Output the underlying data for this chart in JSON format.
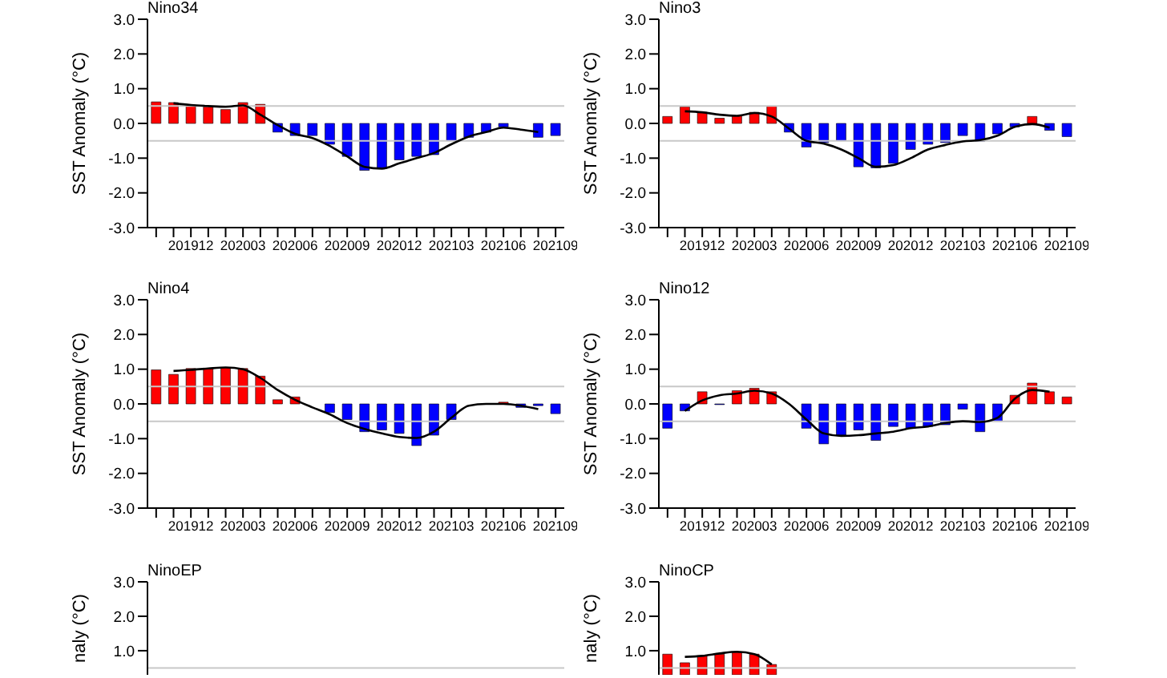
{
  "chart_data": [
    {
      "type": "bar",
      "title": "Nino34",
      "ylabel": "SST Anomaly (°C)",
      "categories": [
        null,
        null,
        "201912",
        null,
        null,
        "202003",
        null,
        null,
        "202006",
        null,
        null,
        "202009",
        null,
        null,
        "202012",
        null,
        null,
        "202103",
        null,
        null,
        "202106",
        null,
        null,
        "202109"
      ],
      "ylim": [
        -3,
        3
      ],
      "yticks": [
        {
          "value": -3,
          "label": "-3.0"
        },
        {
          "value": -2,
          "label": "-2.0"
        },
        {
          "value": -1,
          "label": "-1.0"
        },
        {
          "value": 0,
          "label": "0.0"
        },
        {
          "value": 1,
          "label": "1.0"
        },
        {
          "value": 2,
          "label": "2.0"
        },
        {
          "value": 3,
          "label": "3.0"
        }
      ],
      "ref_lines": [
        {
          "axis": "y",
          "value": 0.5,
          "color": "#c8c8c8"
        },
        {
          "axis": "y",
          "value": -0.5,
          "color": "#c8c8c8"
        }
      ],
      "grid": false,
      "legend": false,
      "series": [
        {
          "type": "bar",
          "values": [
            0.62,
            0.6,
            0.52,
            0.48,
            0.4,
            0.6,
            0.55,
            -0.25,
            -0.35,
            -0.35,
            -0.6,
            -0.95,
            -1.35,
            -1.3,
            -1.05,
            -0.95,
            -0.9,
            -0.5,
            -0.4,
            -0.25,
            -0.1,
            0,
            -0.4,
            -0.35
          ],
          "colors": [
            "#ff0000",
            "#ff0000",
            "#ff0000",
            "#ff0000",
            "#ff0000",
            "#ff0000",
            "#ff0000",
            "#0000ff",
            "#0000ff",
            "#0000ff",
            "#0000ff",
            "#0000ff",
            "#0000ff",
            "#0000ff",
            "#0000ff",
            "#0000ff",
            "#0000ff",
            "#0000ff",
            "#0000ff",
            "#0000ff",
            "#0000ff",
            "#0000ff",
            "#0000ff",
            "#0000ff"
          ]
        },
        {
          "type": "line",
          "color": "#000000",
          "values": [
            null,
            0.58,
            0.53,
            0.5,
            0.48,
            0.52,
            0.25,
            -0.05,
            -0.3,
            -0.42,
            -0.65,
            -0.95,
            -1.25,
            -1.3,
            -1.15,
            -1.0,
            -0.85,
            -0.6,
            -0.38,
            -0.25,
            -0.12,
            -0.18,
            -0.25,
            null
          ]
        }
      ]
    },
    {
      "type": "bar",
      "title": "Nino3",
      "ylabel": "SST Anomaly (°C)",
      "categories": [
        null,
        null,
        "201912",
        null,
        null,
        "202003",
        null,
        null,
        "202006",
        null,
        null,
        "202009",
        null,
        null,
        "202012",
        null,
        null,
        "202103",
        null,
        null,
        "202106",
        null,
        null,
        "202109"
      ],
      "ylim": [
        -3,
        3
      ],
      "yticks": [
        {
          "value": -3,
          "label": "-3.0"
        },
        {
          "value": -2,
          "label": "-2.0"
        },
        {
          "value": -1,
          "label": "-1.0"
        },
        {
          "value": 0,
          "label": "0.0"
        },
        {
          "value": 1,
          "label": "1.0"
        },
        {
          "value": 2,
          "label": "2.0"
        },
        {
          "value": 3,
          "label": "3.0"
        }
      ],
      "ref_lines": [
        {
          "axis": "y",
          "value": 0.5,
          "color": "#c8c8c8"
        },
        {
          "axis": "y",
          "value": -0.5,
          "color": "#c8c8c8"
        }
      ],
      "grid": false,
      "legend": false,
      "series": [
        {
          "type": "bar",
          "values": [
            0.2,
            0.48,
            0.32,
            0.15,
            0.22,
            0.32,
            0.5,
            -0.25,
            -0.68,
            -0.55,
            -0.5,
            -1.25,
            -1.28,
            -1.15,
            -0.75,
            -0.6,
            -0.55,
            -0.35,
            -0.52,
            -0.3,
            -0.1,
            0.2,
            -0.2,
            -0.38
          ],
          "colors": [
            "#ff0000",
            "#ff0000",
            "#ff0000",
            "#ff0000",
            "#ff0000",
            "#ff0000",
            "#ff0000",
            "#0000ff",
            "#0000ff",
            "#0000ff",
            "#0000ff",
            "#0000ff",
            "#0000ff",
            "#0000ff",
            "#0000ff",
            "#0000ff",
            "#0000ff",
            "#0000ff",
            "#0000ff",
            "#0000ff",
            "#0000ff",
            "#ff0000",
            "#0000ff",
            "#0000ff"
          ]
        },
        {
          "type": "line",
          "color": "#000000",
          "values": [
            null,
            0.35,
            0.32,
            0.25,
            0.22,
            0.3,
            0.2,
            -0.15,
            -0.5,
            -0.58,
            -0.75,
            -1.0,
            -1.25,
            -1.2,
            -1.0,
            -0.75,
            -0.62,
            -0.52,
            -0.48,
            -0.35,
            -0.1,
            -0.02,
            -0.12,
            null
          ]
        }
      ]
    },
    {
      "type": "bar",
      "title": "Nino4",
      "ylabel": "SST Anomaly (°C)",
      "categories": [
        null,
        null,
        "201912",
        null,
        null,
        "202003",
        null,
        null,
        "202006",
        null,
        null,
        "202009",
        null,
        null,
        "202012",
        null,
        null,
        "202103",
        null,
        null,
        "202106",
        null,
        null,
        "202109"
      ],
      "ylim": [
        -3,
        3
      ],
      "yticks": [
        {
          "value": -3,
          "label": "-3.0"
        },
        {
          "value": -2,
          "label": "-2.0"
        },
        {
          "value": -1,
          "label": "-1.0"
        },
        {
          "value": 0,
          "label": "0.0"
        },
        {
          "value": 1,
          "label": "1.0"
        },
        {
          "value": 2,
          "label": "2.0"
        },
        {
          "value": 3,
          "label": "3.0"
        }
      ],
      "ref_lines": [
        {
          "axis": "y",
          "value": 0.5,
          "color": "#c8c8c8"
        },
        {
          "axis": "y",
          "value": -0.5,
          "color": "#c8c8c8"
        }
      ],
      "grid": false,
      "legend": false,
      "series": [
        {
          "type": "bar",
          "values": [
            0.98,
            0.85,
            1.02,
            1.02,
            1.05,
            1.02,
            0.8,
            0.12,
            0.2,
            0,
            -0.25,
            -0.45,
            -0.8,
            -0.75,
            -0.85,
            -1.2,
            -0.9,
            -0.45,
            null,
            0,
            0.05,
            -0.1,
            -0.05,
            -0.28
          ],
          "colors": [
            "#ff0000",
            "#ff0000",
            "#ff0000",
            "#ff0000",
            "#ff0000",
            "#ff0000",
            "#ff0000",
            "#ff0000",
            "#ff0000",
            "#0000ff",
            "#0000ff",
            "#0000ff",
            "#0000ff",
            "#0000ff",
            "#0000ff",
            "#0000ff",
            "#0000ff",
            "#0000ff",
            "#0000ff",
            "#0000ff",
            "#ff0000",
            "#0000ff",
            "#0000ff",
            "#0000ff"
          ]
        },
        {
          "type": "line",
          "color": "#000000",
          "values": [
            null,
            0.95,
            0.98,
            1.02,
            1.05,
            1.0,
            0.75,
            0.4,
            0.12,
            -0.1,
            -0.3,
            -0.55,
            -0.72,
            -0.85,
            -0.95,
            -0.98,
            -0.8,
            -0.4,
            -0.05,
            0.0,
            0.0,
            -0.05,
            -0.15,
            null
          ]
        }
      ]
    },
    {
      "type": "bar",
      "title": "Nino12",
      "ylabel": "SST Anomaly (°C)",
      "categories": [
        null,
        null,
        "201912",
        null,
        null,
        "202003",
        null,
        null,
        "202006",
        null,
        null,
        "202009",
        null,
        null,
        "202012",
        null,
        null,
        "202103",
        null,
        null,
        "202106",
        null,
        null,
        "202109"
      ],
      "ylim": [
        -3,
        3
      ],
      "yticks": [
        {
          "value": -3,
          "label": "-3.0"
        },
        {
          "value": -2,
          "label": "-2.0"
        },
        {
          "value": -1,
          "label": "-1.0"
        },
        {
          "value": 0,
          "label": "0.0"
        },
        {
          "value": 1,
          "label": "1.0"
        },
        {
          "value": 2,
          "label": "2.0"
        },
        {
          "value": 3,
          "label": "3.0"
        }
      ],
      "ref_lines": [
        {
          "axis": "y",
          "value": 0.5,
          "color": "#c8c8c8"
        },
        {
          "axis": "y",
          "value": -0.5,
          "color": "#c8c8c8"
        }
      ],
      "grid": false,
      "legend": false,
      "series": [
        {
          "type": "bar",
          "values": [
            -0.7,
            -0.2,
            0.35,
            -0.02,
            0.38,
            0.45,
            0.35,
            null,
            -0.7,
            -1.15,
            -0.9,
            -0.75,
            -1.05,
            -0.65,
            -0.7,
            -0.65,
            -0.6,
            -0.15,
            -0.8,
            -0.5,
            0.25,
            0.6,
            0.35,
            0.2
          ],
          "colors": [
            "#0000ff",
            "#0000ff",
            "#ff0000",
            "#0000ff",
            "#ff0000",
            "#ff0000",
            "#ff0000",
            "#0000ff",
            "#0000ff",
            "#0000ff",
            "#0000ff",
            "#0000ff",
            "#0000ff",
            "#0000ff",
            "#0000ff",
            "#0000ff",
            "#0000ff",
            "#0000ff",
            "#0000ff",
            "#0000ff",
            "#ff0000",
            "#ff0000",
            "#ff0000",
            "#ff0000"
          ]
        },
        {
          "type": "line",
          "color": "#000000",
          "values": [
            null,
            -0.2,
            0.1,
            0.25,
            0.3,
            0.38,
            0.3,
            0.0,
            -0.45,
            -0.85,
            -0.92,
            -0.9,
            -0.85,
            -0.8,
            -0.7,
            -0.65,
            -0.55,
            -0.5,
            -0.52,
            -0.4,
            0.15,
            0.4,
            0.35,
            null
          ]
        }
      ]
    },
    {
      "type": "bar",
      "title": "NinoEP",
      "ylabel": "naly (°C)",
      "tick_labels": "y",
      "categories": [
        null,
        null,
        null,
        null,
        null,
        null,
        null,
        null,
        null,
        null,
        null,
        null,
        null,
        null,
        null,
        null,
        null,
        null,
        null,
        null,
        null,
        null,
        null,
        null
      ],
      "ylim": [
        0.3,
        3
      ],
      "yticks": [
        {
          "value": 1,
          "label": "1.0"
        },
        {
          "value": 2,
          "label": "2.0"
        },
        {
          "value": 3,
          "label": "3.0"
        }
      ],
      "ref_lines": [
        {
          "axis": "y",
          "value": 0.5,
          "color": "#c8c8c8"
        }
      ],
      "grid": false,
      "legend": false,
      "series": [
        {
          "type": "bar",
          "values": [
            null,
            null,
            null,
            null,
            null,
            null,
            null,
            null,
            null,
            null,
            null,
            null,
            null,
            null,
            null,
            null,
            null,
            null,
            null,
            null,
            null,
            null,
            null,
            null
          ]
        }
      ]
    },
    {
      "type": "bar",
      "title": "NinoCP",
      "ylabel": "naly (°C)",
      "tick_labels": "y",
      "categories": [
        null,
        null,
        null,
        null,
        null,
        null,
        null,
        null,
        null,
        null,
        null,
        null,
        null,
        null,
        null,
        null,
        null,
        null,
        null,
        null,
        null,
        null,
        null,
        null
      ],
      "ylim": [
        0.3,
        3
      ],
      "yticks": [
        {
          "value": 1,
          "label": "1.0"
        },
        {
          "value": 2,
          "label": "2.0"
        },
        {
          "value": 3,
          "label": "3.0"
        }
      ],
      "ref_lines": [
        {
          "axis": "y",
          "value": 0.5,
          "color": "#c8c8c8"
        }
      ],
      "grid": false,
      "legend": false,
      "series": [
        {
          "type": "bar",
          "values": [
            0.9,
            0.65,
            0.85,
            0.9,
            0.95,
            0.9,
            0.6,
            null,
            null,
            null,
            null,
            null,
            null,
            null,
            null,
            null,
            null,
            null,
            null,
            null,
            null,
            null,
            null,
            null
          ],
          "colors": [
            "#ff0000",
            "#ff0000",
            "#ff0000",
            "#ff0000",
            "#ff0000",
            "#ff0000",
            "#ff0000",
            null,
            null,
            null,
            null,
            null,
            null,
            null,
            null,
            null,
            null,
            null,
            null,
            null,
            null,
            null,
            null,
            null
          ]
        },
        {
          "type": "line",
          "color": "#000000",
          "values": [
            null,
            0.82,
            0.85,
            0.92,
            0.97,
            0.9,
            0.6,
            null,
            null,
            null,
            null,
            null,
            null,
            null,
            null,
            null,
            null,
            null,
            null,
            null,
            null,
            null,
            null,
            null
          ]
        }
      ]
    }
  ]
}
